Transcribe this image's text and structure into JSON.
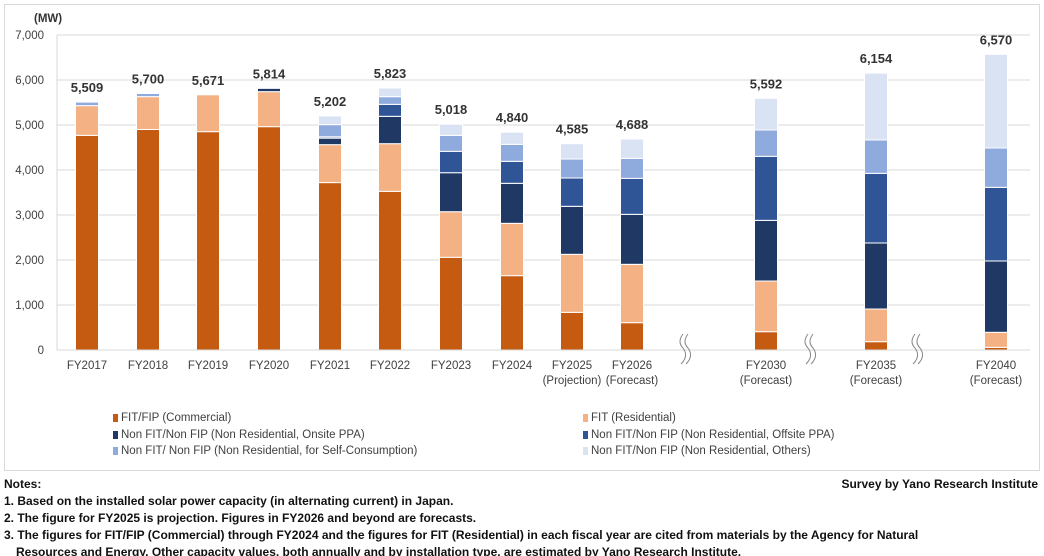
{
  "chart_data": {
    "type": "bar",
    "stacked": true,
    "ylabel": "(MW)",
    "ylim": [
      0,
      7000
    ],
    "yticks": [
      "0",
      "1,000",
      "2,000",
      "3,000",
      "4,000",
      "5,000",
      "6,000",
      "7,000"
    ],
    "grid": true,
    "legend_position": "bottom",
    "categories": [
      {
        "label": "FY2017",
        "sub": ""
      },
      {
        "label": "FY2018",
        "sub": ""
      },
      {
        "label": "FY2019",
        "sub": ""
      },
      {
        "label": "FY2020",
        "sub": ""
      },
      {
        "label": "FY2021",
        "sub": ""
      },
      {
        "label": "FY2022",
        "sub": ""
      },
      {
        "label": "FY2023",
        "sub": ""
      },
      {
        "label": "FY2024",
        "sub": ""
      },
      {
        "label": "FY2025",
        "sub": "(Projection)"
      },
      {
        "label": "FY2026",
        "sub": "(Forecast)"
      },
      {
        "label": "FY2030",
        "sub": "(Forecast)"
      },
      {
        "label": "FY2035",
        "sub": "(Forecast)"
      },
      {
        "label": "FY2040",
        "sub": "(Forecast)"
      }
    ],
    "totals": [
      "5,509",
      "5,700",
      "5,671",
      "5,814",
      "5,202",
      "5,823",
      "5,018",
      "4,840",
      "4,585",
      "4,688",
      "5,592",
      "6,154",
      "6,570"
    ],
    "axis_breaks_after": [
      "FY2026",
      "FY2030",
      "FY2035"
    ],
    "series": [
      {
        "name": "FIT/FIP (Commercial)",
        "color": "#C55A11",
        "values": [
          4770,
          4900,
          4852,
          4963,
          3720,
          3526,
          2060,
          1652,
          837,
          607,
          407,
          185,
          59
        ]
      },
      {
        "name": "FIT (Residential)",
        "color": "#F4B183",
        "values": [
          660,
          730,
          819,
          778,
          843,
          1059,
          1013,
          1163,
          1289,
          1297,
          1126,
          726,
          334
        ]
      },
      {
        "name": "Non FIT/Non FIP (Non Residential, Onsite PPA)",
        "color": "#203864",
        "values": [
          0,
          0,
          0,
          73,
          145,
          608,
          867,
          889,
          1067,
          1111,
          1348,
          1467,
          1585
        ]
      },
      {
        "name": "Non FIT/Non FIP (Non Residential, Offsite PPA)",
        "color": "#2F5597",
        "values": [
          0,
          0,
          0,
          0,
          30,
          266,
          475,
          489,
          629,
          800,
          1423,
          1548,
          1637
        ]
      },
      {
        "name": "Non FIT/ Non FIP (Non Residential, for Self-Consumption)",
        "color": "#8FAADC",
        "values": [
          79,
          70,
          0,
          0,
          270,
          171,
          355,
          377,
          422,
          444,
          585,
          741,
          874
        ]
      },
      {
        "name": "Non FIT/Non FIP (Non Residential, Others)",
        "color": "#DAE3F3",
        "values": [
          0,
          0,
          0,
          0,
          194,
          193,
          248,
          270,
          341,
          429,
          703,
          1487,
          2081
        ]
      }
    ]
  },
  "notes": {
    "heading": "Notes:",
    "source": "Survey by Yano Research Institute",
    "lines": [
      "1. Based on the installed solar power capacity (in alternating current) in Japan.",
      "2. The figure for FY2025 is projection. Figures in FY2026 and beyond are forecasts.",
      "3. The figures for FIT/FIP (Commercial) through FY2024 and the figures for FIT (Residential) in each fiscal year are cited from materials by the Agency for Natural",
      "Resources and Energy.  Other capacity values, both annually and by installation type, are estimated by Yano Research Institute."
    ]
  }
}
